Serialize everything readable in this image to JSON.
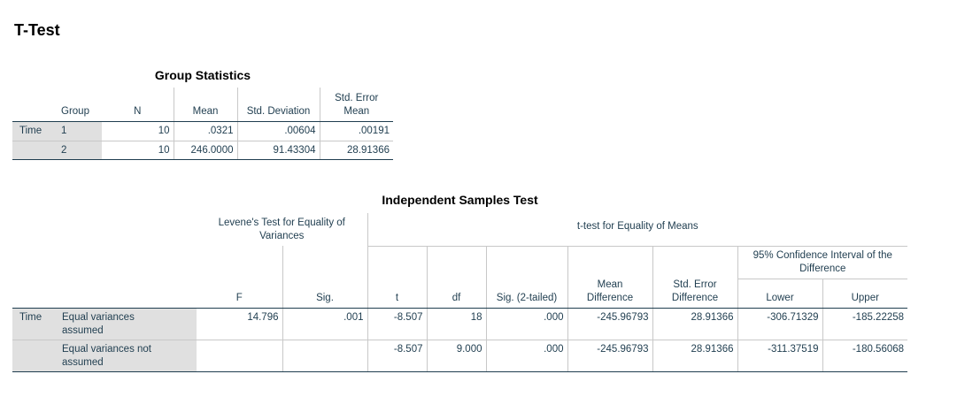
{
  "title": "T-Test",
  "group_statistics": {
    "caption": "Group Statistics",
    "headers": {
      "group": "Group",
      "n": "N",
      "mean": "Mean",
      "std_dev": "Std. Deviation",
      "std_err": "Std. Error Mean"
    },
    "row_label": "Time",
    "rows": [
      {
        "group": "1",
        "n": "10",
        "mean": ".0321",
        "std_dev": ".00604",
        "std_err": ".00191"
      },
      {
        "group": "2",
        "n": "10",
        "mean": "246.0000",
        "std_dev": "91.43304",
        "std_err": "28.91366"
      }
    ]
  },
  "independent_samples": {
    "caption": "Independent Samples Test",
    "levene_header": "Levene's Test for Equality of Variances",
    "ttest_header": "t-test for Equality of Means",
    "ci_header": "95% Confidence Interval of the Difference",
    "headers": {
      "f": "F",
      "sig": "Sig.",
      "t": "t",
      "df": "df",
      "sig2": "Sig. (2-tailed)",
      "mean_diff": "Mean Difference",
      "std_err_diff": "Std. Error Difference",
      "lower": "Lower",
      "upper": "Upper"
    },
    "row_label": "Time",
    "rows": [
      {
        "label": "Equal variances assumed",
        "f": "14.796",
        "sig": ".001",
        "t": "-8.507",
        "df": "18",
        "sig2": ".000",
        "mean_diff": "-245.96793",
        "std_err_diff": "28.91366",
        "lower": "-306.71329",
        "upper": "-185.22258"
      },
      {
        "label": "Equal variances not assumed",
        "f": "",
        "sig": "",
        "t": "-8.507",
        "df": "9.000",
        "sig2": ".000",
        "mean_diff": "-245.96793",
        "std_err_diff": "28.91366",
        "lower": "-311.37519",
        "upper": "-180.56068"
      }
    ]
  }
}
